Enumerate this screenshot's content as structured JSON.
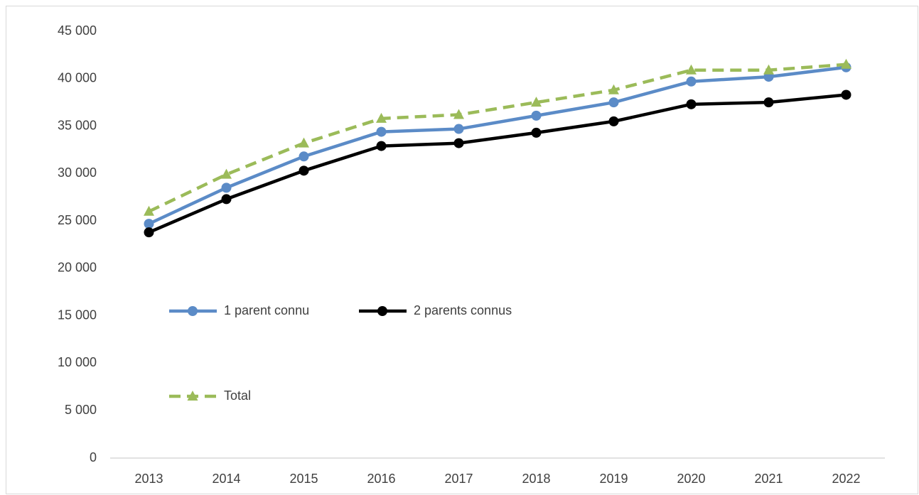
{
  "chart_data": {
    "type": "line",
    "categories": [
      "2013",
      "2014",
      "2015",
      "2016",
      "2017",
      "2018",
      "2019",
      "2020",
      "2021",
      "2022"
    ],
    "series": [
      {
        "name": "1 parent connu",
        "color": "#5b8bc7",
        "marker": "circle",
        "dashed": false,
        "values": [
          24700,
          28500,
          31800,
          34400,
          34700,
          36100,
          37500,
          39700,
          40200,
          41200
        ]
      },
      {
        "name": "2 parents connus",
        "color": "#000000",
        "marker": "circle",
        "dashed": false,
        "values": [
          23800,
          27300,
          30300,
          32900,
          33200,
          34300,
          35500,
          37300,
          37500,
          38300
        ]
      },
      {
        "name": "Total",
        "color": "#9bbb59",
        "marker": "triangle",
        "dashed": true,
        "values": [
          26000,
          29900,
          33200,
          35800,
          36200,
          37500,
          38800,
          40900,
          40900,
          41500
        ]
      }
    ],
    "ylim": [
      0,
      45000
    ],
    "yticks": [
      0,
      {
        "value": 5000,
        "label": "5 000"
      },
      {
        "value": 10000,
        "label": "10 000"
      },
      {
        "value": 15000,
        "label": "15 000"
      },
      {
        "value": 20000,
        "label": "20 000"
      },
      {
        "value": 25000,
        "label": "25 000"
      },
      {
        "value": 30000,
        "label": "30 000"
      },
      {
        "value": 35000,
        "label": "35 000"
      },
      {
        "value": 40000,
        "label": "40 000"
      },
      {
        "value": 45000,
        "label": "45 000"
      }
    ],
    "grid": false,
    "legend": "left"
  }
}
